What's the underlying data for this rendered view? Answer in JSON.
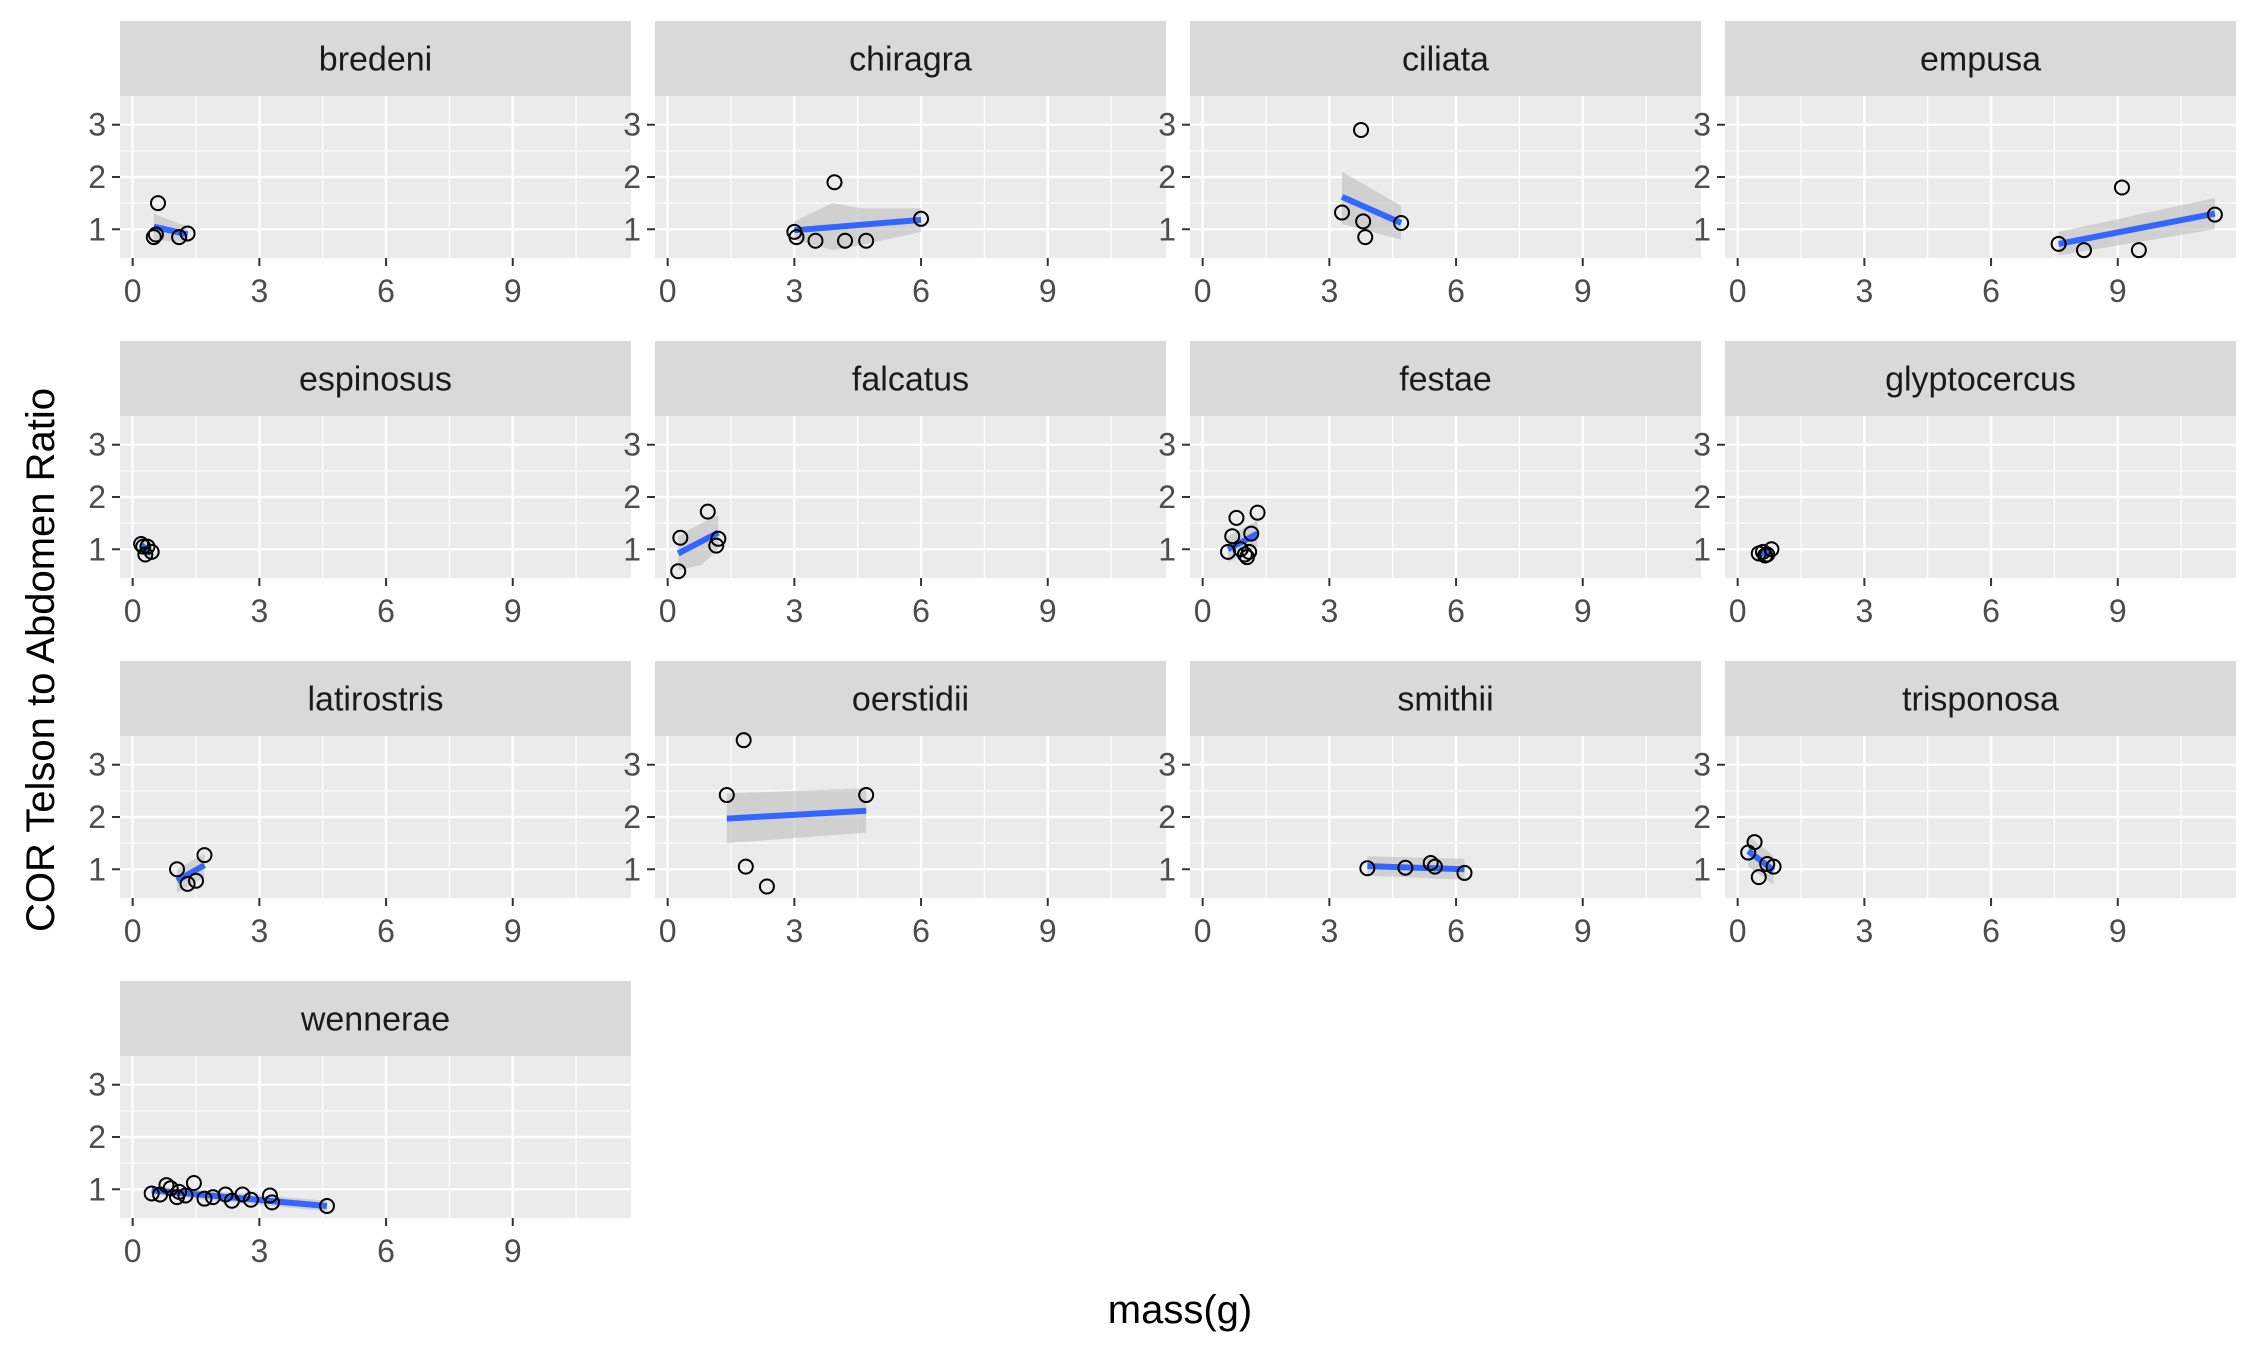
{
  "chart_data": {
    "type": "scatter",
    "facet": "species",
    "xlabel": "mass(g)",
    "ylabel": "COR Telson to Abdomen Ratio",
    "xlim": [
      -0.3,
      11.8
    ],
    "ylim": [
      0.45,
      3.55
    ],
    "x_ticks": [
      0,
      3,
      6,
      9
    ],
    "y_ticks": [
      1,
      2,
      3
    ],
    "grid": true,
    "ncol": 4,
    "colors": {
      "panel_bg": "#EBEBEB",
      "strip_bg": "#D9D9D9",
      "grid": "#FFFFFF",
      "fit_line": "#3366FF",
      "ribbon": "#BEBEBE",
      "point_stroke": "#000000"
    },
    "panels": [
      {
        "label": "bredeni",
        "points": [
          [
            0.5,
            0.85
          ],
          [
            0.55,
            0.9
          ],
          [
            0.6,
            1.5
          ],
          [
            1.1,
            0.85
          ],
          [
            1.3,
            0.92
          ]
        ],
        "fit": [
          [
            0.5,
            1.05
          ],
          [
            1.3,
            0.9
          ]
        ],
        "band": [
          [
            0.5,
            0.8,
            1.3
          ],
          [
            1.3,
            0.75,
            1.05
          ]
        ]
      },
      {
        "label": "chiragra",
        "points": [
          [
            3.0,
            0.95
          ],
          [
            3.05,
            0.85
          ],
          [
            3.5,
            0.78
          ],
          [
            3.95,
            1.9
          ],
          [
            4.2,
            0.78
          ],
          [
            4.7,
            0.78
          ],
          [
            6.0,
            1.2
          ]
        ],
        "fit": [
          [
            3.0,
            0.98
          ],
          [
            6.0,
            1.18
          ]
        ],
        "band": [
          [
            3.0,
            0.8,
            1.15
          ],
          [
            3.9,
            0.6,
            1.5
          ],
          [
            4.6,
            0.7,
            1.4
          ],
          [
            6.0,
            0.95,
            1.4
          ]
        ]
      },
      {
        "label": "ciliata",
        "points": [
          [
            3.3,
            1.32
          ],
          [
            3.75,
            2.9
          ],
          [
            3.8,
            1.15
          ],
          [
            3.85,
            0.85
          ],
          [
            4.7,
            1.12
          ]
        ],
        "fit": [
          [
            3.3,
            1.62
          ],
          [
            4.7,
            1.12
          ]
        ],
        "band": [
          [
            3.3,
            1.1,
            2.1
          ],
          [
            4.7,
            0.8,
            1.45
          ]
        ]
      },
      {
        "label": "empusa",
        "points": [
          [
            7.6,
            0.72
          ],
          [
            8.2,
            0.6
          ],
          [
            9.1,
            1.8
          ],
          [
            9.5,
            0.6
          ],
          [
            11.3,
            1.28
          ]
        ],
        "fit": [
          [
            7.6,
            0.72
          ],
          [
            11.3,
            1.3
          ]
        ],
        "band": [
          [
            7.6,
            0.5,
            0.95
          ],
          [
            11.3,
            1.0,
            1.6
          ]
        ]
      },
      {
        "label": "espinosus",
        "points": [
          [
            0.2,
            1.1
          ],
          [
            0.25,
            1.05
          ],
          [
            0.3,
            0.9
          ],
          [
            0.35,
            1.05
          ],
          [
            0.45,
            0.95
          ]
        ],
        "fit": [
          [
            0.2,
            1.08
          ],
          [
            0.45,
            0.92
          ]
        ],
        "band": [
          [
            0.2,
            0.95,
            1.2
          ],
          [
            0.45,
            0.8,
            1.05
          ]
        ]
      },
      {
        "label": "falcatus",
        "points": [
          [
            0.25,
            0.58
          ],
          [
            0.3,
            1.22
          ],
          [
            0.95,
            1.72
          ],
          [
            1.15,
            1.07
          ],
          [
            1.2,
            1.2
          ]
        ],
        "fit": [
          [
            0.25,
            0.92
          ],
          [
            1.2,
            1.32
          ]
        ],
        "band": [
          [
            0.25,
            0.6,
            1.25
          ],
          [
            0.8,
            0.7,
            1.5
          ],
          [
            1.2,
            1.0,
            1.65
          ]
        ]
      },
      {
        "label": "festae",
        "points": [
          [
            0.6,
            0.95
          ],
          [
            0.7,
            1.25
          ],
          [
            0.8,
            1.6
          ],
          [
            0.9,
            1.0
          ],
          [
            1.0,
            0.9
          ],
          [
            1.05,
            0.85
          ],
          [
            1.1,
            0.95
          ],
          [
            1.15,
            1.3
          ],
          [
            1.3,
            1.7
          ]
        ],
        "fit": [
          [
            0.6,
            1.0
          ],
          [
            1.3,
            1.3
          ]
        ],
        "band": [
          [
            0.6,
            0.75,
            1.25
          ],
          [
            1.3,
            1.05,
            1.55
          ]
        ]
      },
      {
        "label": "glyptocercus",
        "points": [
          [
            0.5,
            0.92
          ],
          [
            0.6,
            0.95
          ],
          [
            0.65,
            0.88
          ],
          [
            0.7,
            0.9
          ],
          [
            0.8,
            1.0
          ]
        ],
        "fit": [
          [
            0.5,
            0.9
          ],
          [
            0.8,
            0.97
          ]
        ],
        "band": [
          [
            0.5,
            0.82,
            0.98
          ],
          [
            0.8,
            0.88,
            1.05
          ]
        ]
      },
      {
        "label": "latirostris",
        "points": [
          [
            1.05,
            1.0
          ],
          [
            1.3,
            0.72
          ],
          [
            1.5,
            0.78
          ],
          [
            1.7,
            1.27
          ]
        ],
        "fit": [
          [
            1.05,
            0.78
          ],
          [
            1.7,
            1.08
          ]
        ],
        "band": [
          [
            1.05,
            0.55,
            1.0
          ],
          [
            1.7,
            0.85,
            1.3
          ]
        ]
      },
      {
        "label": "oerstidii",
        "points": [
          [
            1.4,
            2.42
          ],
          [
            1.8,
            3.47
          ],
          [
            1.85,
            1.05
          ],
          [
            2.35,
            0.67
          ],
          [
            4.7,
            2.42
          ]
        ],
        "fit": [
          [
            1.4,
            1.97
          ],
          [
            4.7,
            2.12
          ]
        ],
        "band": [
          [
            1.4,
            1.5,
            2.45
          ],
          [
            4.7,
            1.7,
            2.55
          ]
        ]
      },
      {
        "label": "smithii",
        "points": [
          [
            3.9,
            1.02
          ],
          [
            4.8,
            1.03
          ],
          [
            5.4,
            1.12
          ],
          [
            5.5,
            1.05
          ],
          [
            6.2,
            0.93
          ]
        ],
        "fit": [
          [
            3.9,
            1.06
          ],
          [
            6.2,
            1.0
          ]
        ],
        "band": [
          [
            3.9,
            0.88,
            1.25
          ],
          [
            6.2,
            0.8,
            1.2
          ]
        ]
      },
      {
        "label": "trisponosa",
        "points": [
          [
            0.25,
            1.32
          ],
          [
            0.4,
            1.52
          ],
          [
            0.5,
            0.85
          ],
          [
            0.7,
            1.1
          ],
          [
            0.85,
            1.05
          ]
        ],
        "fit": [
          [
            0.25,
            1.35
          ],
          [
            0.85,
            0.98
          ]
        ],
        "band": [
          [
            0.25,
            1.05,
            1.65
          ],
          [
            0.85,
            0.7,
            1.25
          ]
        ]
      },
      {
        "label": "wennerae",
        "points": [
          [
            0.45,
            0.92
          ],
          [
            0.65,
            0.9
          ],
          [
            0.8,
            1.08
          ],
          [
            0.9,
            1.02
          ],
          [
            1.05,
            0.85
          ],
          [
            1.1,
            0.95
          ],
          [
            1.25,
            0.88
          ],
          [
            1.45,
            1.12
          ],
          [
            1.7,
            0.82
          ],
          [
            1.9,
            0.85
          ],
          [
            2.2,
            0.9
          ],
          [
            2.35,
            0.78
          ],
          [
            2.6,
            0.9
          ],
          [
            2.8,
            0.8
          ],
          [
            3.25,
            0.88
          ],
          [
            3.3,
            0.75
          ],
          [
            4.6,
            0.68
          ]
        ],
        "fit": [
          [
            0.45,
            0.98
          ],
          [
            4.6,
            0.68
          ]
        ],
        "band": [
          [
            0.45,
            0.9,
            1.06
          ],
          [
            4.6,
            0.58,
            0.78
          ]
        ]
      }
    ]
  }
}
